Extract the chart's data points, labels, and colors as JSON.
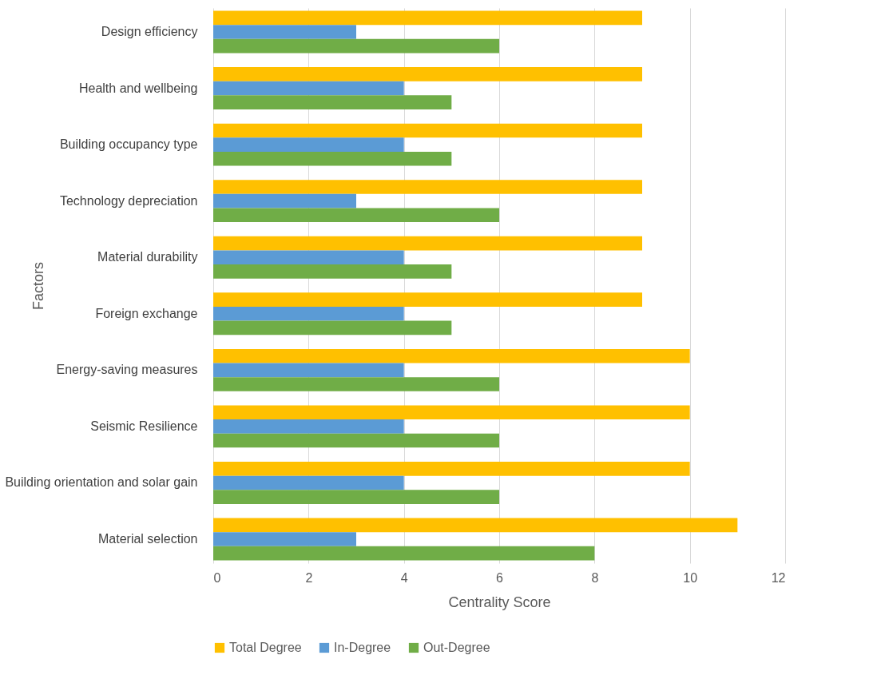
{
  "chart_data": {
    "type": "bar",
    "orientation": "horizontal",
    "categories": [
      "Design efficiency",
      "Health and wellbeing",
      "Building occupancy type",
      "Technology depreciation",
      "Material durability",
      "Foreign exchange",
      "Energy-saving measures",
      "Seismic Resilience",
      "Building orientation and solar gain",
      "Material selection"
    ],
    "series": [
      {
        "name": "Total Degree",
        "color": "#ffc000",
        "values": [
          9,
          9,
          9,
          9,
          9,
          9,
          10,
          10,
          10,
          11
        ]
      },
      {
        "name": "In-Degree",
        "color": "#5b9bd5",
        "values": [
          3,
          4,
          4,
          3,
          4,
          4,
          4,
          4,
          4,
          3
        ]
      },
      {
        "name": "Out-Degree",
        "color": "#70ad47",
        "values": [
          6,
          5,
          5,
          6,
          5,
          5,
          6,
          6,
          6,
          8
        ]
      }
    ],
    "xlabel": "Centrality Score",
    "ylabel": "Factors",
    "xlim": [
      0,
      12
    ],
    "xticks": [
      0,
      2,
      4,
      6,
      8,
      10,
      12
    ],
    "grid": "x",
    "legend": "bottom"
  }
}
